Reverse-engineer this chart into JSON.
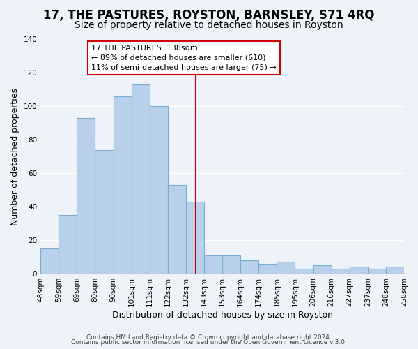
{
  "title": "17, THE PASTURES, ROYSTON, BARNSLEY, S71 4RQ",
  "subtitle": "Size of property relative to detached houses in Royston",
  "xlabel": "Distribution of detached houses by size in Royston",
  "ylabel": "Number of detached properties",
  "bin_labels": [
    "48sqm",
    "59sqm",
    "69sqm",
    "80sqm",
    "90sqm",
    "101sqm",
    "111sqm",
    "122sqm",
    "132sqm",
    "143sqm",
    "153sqm",
    "164sqm",
    "174sqm",
    "185sqm",
    "195sqm",
    "206sqm",
    "216sqm",
    "227sqm",
    "237sqm",
    "248sqm",
    "258sqm"
  ],
  "bin_values": [
    15,
    35,
    93,
    74,
    106,
    113,
    100,
    53,
    43,
    11,
    11,
    8,
    6,
    7,
    3,
    5,
    3,
    4,
    3,
    4
  ],
  "bar_color": "#b8d0ea",
  "bar_edge_color": "#7aadd4",
  "marker_line_color": "#cc0000",
  "annotation_text": "17 THE PASTURES: 138sqm\n← 89% of detached houses are smaller (610)\n11% of semi-detached houses are larger (75) →",
  "annotation_box_color": "#ffffff",
  "annotation_box_edge_color": "#cc0000",
  "ylim": [
    0,
    140
  ],
  "yticks": [
    0,
    20,
    40,
    60,
    80,
    100,
    120,
    140
  ],
  "footer1": "Contains HM Land Registry data © Crown copyright and database right 2024.",
  "footer2": "Contains public sector information licensed under the Open Government Licence v.3.0.",
  "background_color": "#eef2f9",
  "grid_color": "#ffffff",
  "title_fontsize": 12,
  "subtitle_fontsize": 10,
  "axis_label_fontsize": 9,
  "tick_fontsize": 7.5,
  "footer_fontsize": 6.5
}
